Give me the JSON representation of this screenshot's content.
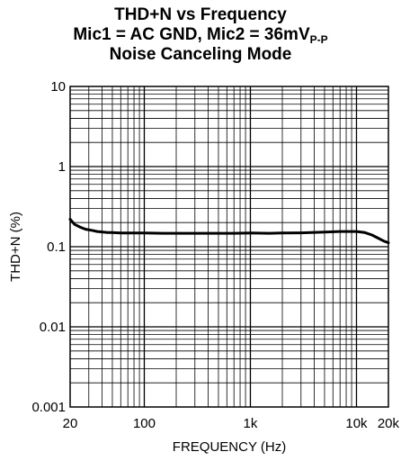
{
  "title": {
    "line1": "THD+N vs Frequency",
    "line2_prefix": "Mic1 = AC GND, Mic2 = 36mV",
    "line2_subscript": "P-P",
    "line3": "Noise Canceling Mode"
  },
  "chart_data": {
    "type": "line",
    "title": "THD+N vs Frequency",
    "xlabel": "FREQUENCY (Hz)",
    "ylabel": "THD+N (%)",
    "x_scale": "log",
    "y_scale": "log",
    "xlim": [
      20,
      20000
    ],
    "ylim": [
      0.001,
      10
    ],
    "grid": true,
    "x_ticks": [
      {
        "value": 20,
        "label": "20"
      },
      {
        "value": 100,
        "label": "100"
      },
      {
        "value": 1000,
        "label": "1k"
      },
      {
        "value": 10000,
        "label": "10k"
      },
      {
        "value": 20000,
        "label": "20k"
      }
    ],
    "y_ticks": [
      {
        "value": 10,
        "label": "10"
      },
      {
        "value": 1,
        "label": "1"
      },
      {
        "value": 0.1,
        "label": "0.1"
      },
      {
        "value": 0.01,
        "label": "0.01"
      },
      {
        "value": 0.001,
        "label": "0.001"
      }
    ],
    "series": [
      {
        "x": [
          20,
          22,
          25,
          28,
          32,
          36,
          40,
          45,
          50,
          60,
          70,
          80,
          100,
          150,
          200,
          300,
          500,
          700,
          1000,
          1500,
          2000,
          3000,
          5000,
          7000,
          10000,
          12000,
          14000,
          16000,
          18000,
          20000
        ],
        "y": [
          0.22,
          0.19,
          0.175,
          0.165,
          0.16,
          0.155,
          0.153,
          0.15,
          0.15,
          0.148,
          0.148,
          0.148,
          0.148,
          0.147,
          0.147,
          0.147,
          0.147,
          0.147,
          0.148,
          0.147,
          0.148,
          0.149,
          0.152,
          0.155,
          0.155,
          0.15,
          0.14,
          0.128,
          0.118,
          0.112
        ]
      }
    ]
  }
}
